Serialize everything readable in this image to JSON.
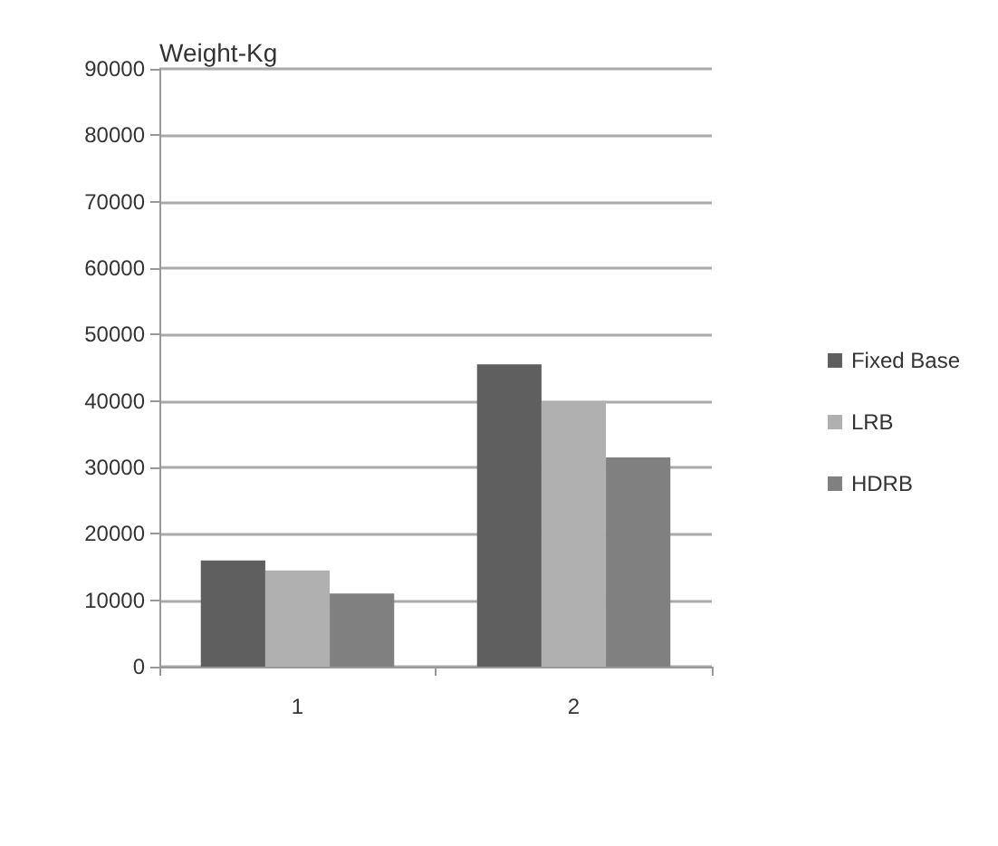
{
  "chart_data": {
    "type": "bar",
    "ylabel": "Weight-Kg",
    "categories": [
      "1",
      "2"
    ],
    "series": [
      {
        "name": "Fixed Base",
        "color": "#5f5f5f",
        "values": [
          16000,
          45500
        ]
      },
      {
        "name": "LRB",
        "color": "#b0b0b0",
        "values": [
          14500,
          40000
        ]
      },
      {
        "name": "HDRB",
        "color": "#808080",
        "values": [
          11000,
          31500
        ]
      }
    ],
    "ylim": [
      0,
      90000
    ],
    "yticks": [
      0,
      10000,
      20000,
      30000,
      40000,
      50000,
      60000,
      70000,
      80000,
      90000
    ],
    "grid": "y",
    "legend": "right"
  }
}
